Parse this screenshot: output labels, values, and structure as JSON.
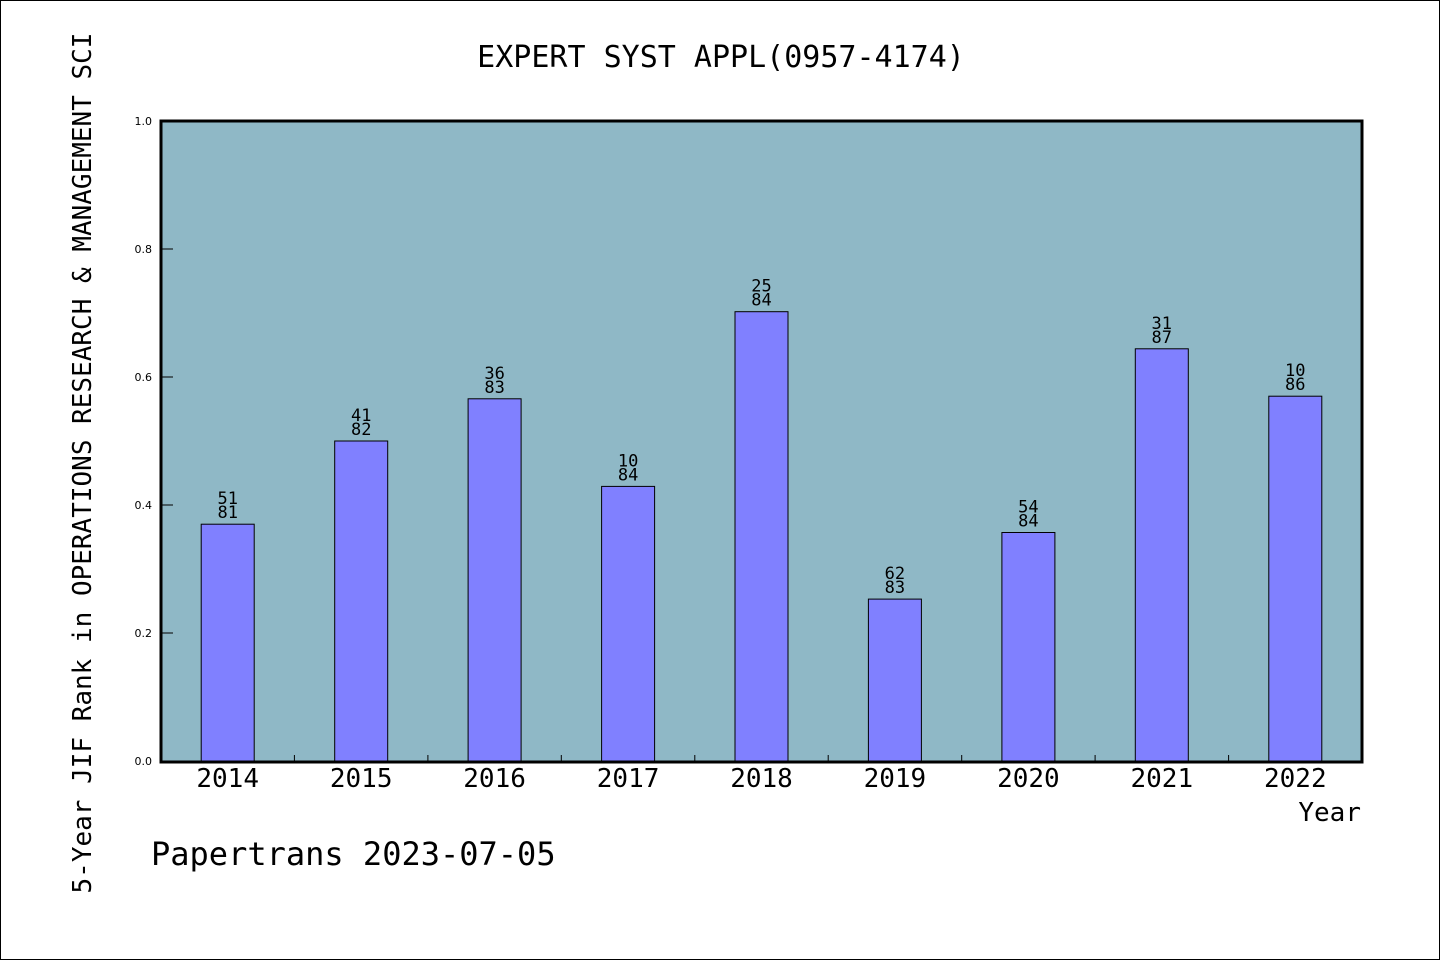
{
  "chart_data": {
    "type": "bar",
    "title": "EXPERT SYST APPL(0957-4174)",
    "xlabel": "Year",
    "ylabel": "5-Year JIF Rank in OPERATIONS RESEARCH & MANAGEMENT SCI",
    "ylim": [
      0,
      1.0
    ],
    "yticks": [
      "0.0",
      "0.2",
      "0.4",
      "0.6",
      "0.8",
      "1.0"
    ],
    "categories": [
      "2014",
      "2015",
      "2016",
      "2017",
      "2018",
      "2019",
      "2020",
      "2021",
      "2022"
    ],
    "values": [
      0.37,
      0.5,
      0.566,
      0.429,
      0.702,
      0.253,
      0.357,
      0.644,
      0.57
    ],
    "labels": [
      [
        "51",
        "81"
      ],
      [
        "41",
        "82"
      ],
      [
        "36",
        "83"
      ],
      [
        "10",
        "84"
      ],
      [
        "25",
        "84"
      ],
      [
        "62",
        "83"
      ],
      [
        "54",
        "84"
      ],
      [
        "31",
        "87"
      ],
      [
        "10",
        "86"
      ]
    ],
    "grid": false,
    "colors": {
      "plot_background": "#8fb8c6",
      "bar": "#8080ff",
      "bar_edge": "#000000"
    }
  },
  "footer": {
    "text": "Papertrans 2023-07-05"
  }
}
